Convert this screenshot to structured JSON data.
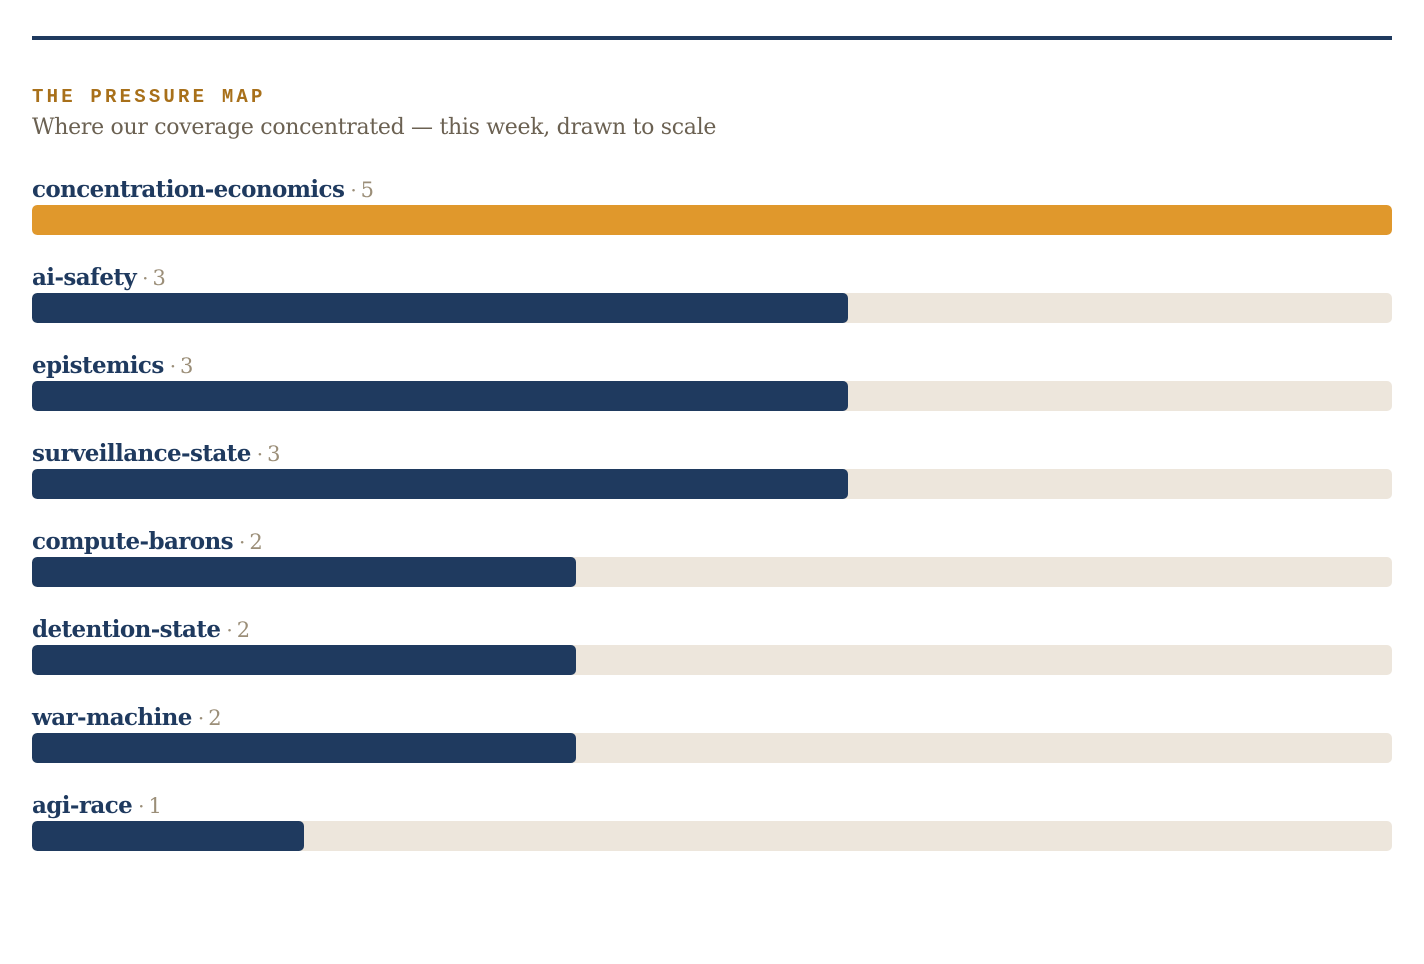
{
  "header": {
    "eyebrow": "THE PRESSURE MAP",
    "subtitle": "Where our coverage concentrated — this week, drawn to scale"
  },
  "colors": {
    "rule": "#1f3a5f",
    "eyebrow": "#a8701a",
    "bar_default": "#1f3a5f",
    "bar_highlight": "#e0982c",
    "track": "#ede6dc"
  },
  "chart_data": {
    "type": "bar",
    "orientation": "horizontal",
    "title": "THE PRESSURE MAP",
    "subtitle": "Where our coverage concentrated — this week, drawn to scale",
    "categories": [
      "concentration-economics",
      "ai-safety",
      "epistemics",
      "surveillance-state",
      "compute-barons",
      "detention-state",
      "war-machine",
      "agi-race"
    ],
    "values": [
      5,
      3,
      3,
      3,
      2,
      2,
      2,
      1
    ],
    "xlim": [
      0,
      5
    ],
    "separator": "·",
    "highlight_index": 0,
    "grid": false,
    "legend": "none"
  }
}
